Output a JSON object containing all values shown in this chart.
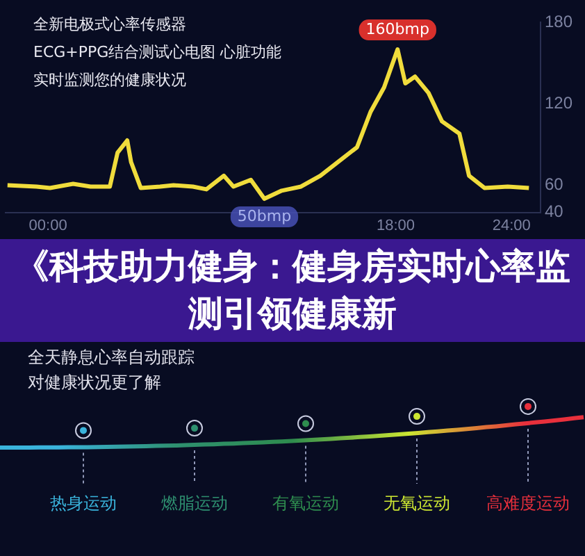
{
  "chart_data": [
    {
      "type": "line",
      "title": "《科技助力健身：健身房实时心率监测引领健康新",
      "annotations": [
        "全新电极式心率传感器",
        "ECG+PPG结合测试心电图  心脏功能",
        "实时监测您的健康状况",
        "全天静息心率自动跟踪",
        "对健康状况更了解",
        {
          "text": "160bmp",
          "x": 18.1,
          "y": 160
        },
        {
          "text": "50bmp",
          "x": 11.2,
          "y": 50
        }
      ],
      "x": [
        -2.1,
        -0.6,
        0.1,
        1.3,
        2.2,
        3.2,
        3.6,
        4.1,
        4.3,
        4.8,
        5.8,
        6.5,
        7.5,
        8.2,
        9.1,
        9.6,
        10.5,
        11.2,
        12.1,
        13.1,
        14.1,
        15.0,
        16.0,
        16.7,
        17.4,
        18.1,
        18.5,
        19.0,
        19.7,
        20.4,
        21.3,
        21.8,
        22.6,
        23.8,
        24.9
      ],
      "series": [
        {
          "color": "#f0dc3c",
          "values": [
            60,
            59,
            58,
            61,
            59,
            59,
            84,
            93,
            77,
            58,
            59,
            60,
            59,
            57,
            67,
            59,
            64,
            50,
            56,
            59,
            67,
            77,
            88,
            114,
            132,
            160,
            135,
            140,
            128,
            107,
            98,
            67,
            58,
            59,
            58
          ]
        }
      ],
      "xlim": [
        -2.2,
        25.5
      ],
      "xticks": [
        {
          "value": 0,
          "label": "00:00"
        },
        {
          "value": 18,
          "label": "18:00"
        },
        {
          "value": 24,
          "label": "24:00"
        }
      ],
      "ylim": [
        40,
        180
      ],
      "yticks": [
        40,
        60,
        120,
        180
      ],
      "grid": false,
      "legend": false,
      "marker": "none",
      "line_style": "solid"
    },
    {
      "type": "other",
      "categories": [
        "热身运动",
        "燃脂运动",
        "有氧运动",
        "无氧运动",
        "高难度运动"
      ],
      "colors": [
        "#3ab4dc",
        "#2e9070",
        "#2e8c4e",
        "#cce632",
        "#e8303c"
      ]
    }
  ]
}
